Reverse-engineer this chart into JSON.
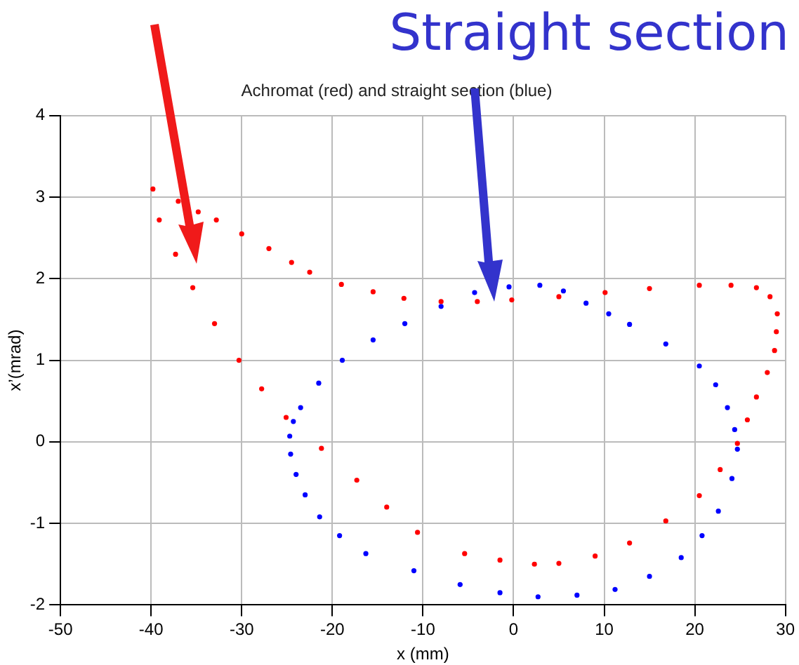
{
  "chart_data": {
    "type": "scatter",
    "title": "Achromat (red) and straight section (blue)",
    "xlabel": "x (mm)",
    "ylabel": "x’(mrad)",
    "annotations": [
      "Straight section"
    ],
    "series": [
      {
        "color": "#ff0000",
        "x": [
          -39.8,
          -37,
          -34.8,
          -32.8,
          -30,
          -27,
          -24.5,
          -22.5,
          -19,
          -15.5,
          -12.1,
          -8,
          -4,
          -0.2,
          5,
          10.1,
          15,
          20.5,
          24,
          26.8,
          28.3,
          29.1,
          29,
          28.8,
          28,
          26.8,
          25.8,
          24.7,
          22.8,
          20.5,
          16.8,
          12.8,
          9,
          5,
          2.3,
          -1.5,
          -5.4,
          -10.6,
          -14,
          -17.3,
          -21.2,
          -25.1,
          -27.8,
          -30.3,
          -33,
          -35.4,
          -37.3,
          -39.1
        ],
        "values": [
          3.1,
          2.95,
          2.82,
          2.72,
          2.55,
          2.37,
          2.2,
          2.08,
          1.93,
          1.84,
          1.76,
          1.72,
          1.72,
          1.74,
          1.78,
          1.83,
          1.88,
          1.92,
          1.92,
          1.89,
          1.78,
          1.57,
          1.35,
          1.12,
          0.85,
          0.55,
          0.27,
          -0.02,
          -0.34,
          -0.66,
          -0.97,
          -1.24,
          -1.4,
          -1.49,
          -1.5,
          -1.45,
          -1.37,
          -1.11,
          -0.8,
          -0.47,
          -0.08,
          0.3,
          0.65,
          1.0,
          1.45,
          1.89,
          2.3,
          2.72
        ]
      },
      {
        "color": "#0000ff",
        "x": [
          -24.7,
          -24.3,
          -23.5,
          -21.5,
          -18.9,
          -15.5,
          -12,
          -8,
          -4.3,
          -0.5,
          2.9,
          5.5,
          8,
          10.5,
          12.8,
          16.8,
          20.5,
          22.3,
          23.6,
          24.4,
          24.7,
          24.1,
          22.6,
          20.8,
          18.5,
          15,
          11.2,
          7,
          2.7,
          -1.5,
          -5.9,
          -11,
          -16.3,
          -19.2,
          -21.4,
          -23,
          -24,
          -24.6
        ],
        "values": [
          0.07,
          0.25,
          0.42,
          0.72,
          1.0,
          1.25,
          1.45,
          1.66,
          1.83,
          1.9,
          1.92,
          1.85,
          1.7,
          1.57,
          1.44,
          1.2,
          0.93,
          0.7,
          0.42,
          0.15,
          -0.09,
          -0.45,
          -0.85,
          -1.15,
          -1.42,
          -1.65,
          -1.81,
          -1.88,
          -1.9,
          -1.85,
          -1.75,
          -1.58,
          -1.37,
          -1.15,
          -0.92,
          -0.65,
          -0.4,
          -0.15
        ]
      }
    ],
    "xlim": [
      -50,
      30
    ],
    "xticks": [
      -50,
      -40,
      -30,
      -20,
      -10,
      0,
      10,
      20,
      30
    ],
    "ylim": [
      -2,
      4
    ],
    "yticks": [
      -2,
      -1,
      0,
      1,
      2,
      3,
      4
    ],
    "grid": true,
    "marker": "circle"
  }
}
